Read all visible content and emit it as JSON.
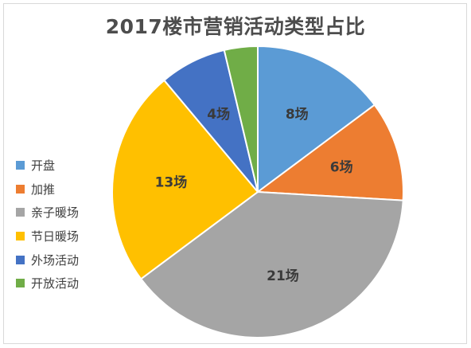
{
  "chart_data": {
    "type": "pie",
    "title": "2017楼市营销活动类型占比",
    "legend_position": "left",
    "slices": [
      {
        "name": "开盘",
        "value": 8,
        "label": "8场",
        "color": "#5b9bd5"
      },
      {
        "name": "加推",
        "value": 6,
        "label": "6场",
        "color": "#ed7d31"
      },
      {
        "name": "亲子暖场",
        "value": 21,
        "label": "21场",
        "color": "#a5a5a5"
      },
      {
        "name": "节日暖场",
        "value": 13,
        "label": "13场",
        "color": "#ffc000"
      },
      {
        "name": "外场活动",
        "value": 4,
        "label": "4场",
        "color": "#4472c4"
      },
      {
        "name": "开放活动",
        "value": 2,
        "label": "",
        "color": "#70ad47"
      }
    ]
  }
}
